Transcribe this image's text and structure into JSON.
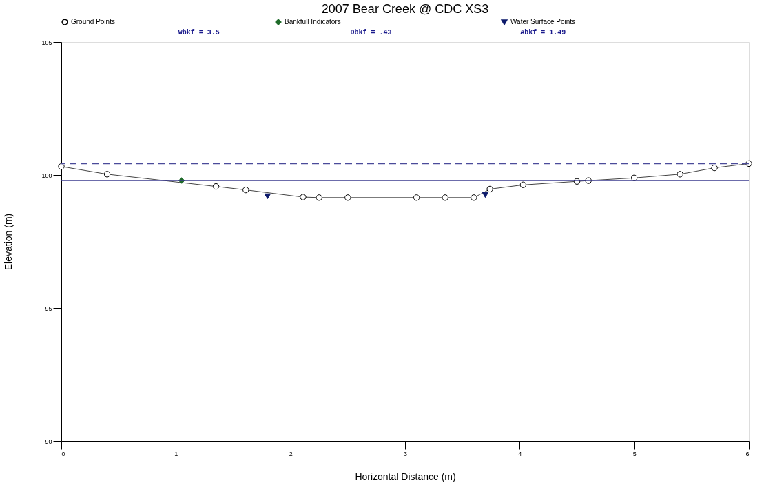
{
  "chart_data": {
    "type": "line",
    "title": "2007 Bear Creek @ CDC XS3",
    "xlabel": "Horizontal Distance (m)",
    "ylabel": "Elevation (m)",
    "xlim": [
      0,
      6
    ],
    "xticks": [
      0,
      1,
      2,
      3,
      4,
      5,
      6
    ],
    "ylim": [
      90,
      105
    ],
    "yticks": [
      90,
      95,
      100,
      105
    ],
    "grid": false,
    "legend": "top",
    "series": [
      {
        "name": "Ground Points",
        "marker": "circle",
        "color": "#000000",
        "x": [
          0,
          0.4,
          1.35,
          1.61,
          2.11,
          2.25,
          2.5,
          3.1,
          3.35,
          3.6,
          3.74,
          4.03,
          4.5,
          4.6,
          5.0,
          5.4,
          5.7,
          6.0
        ],
        "values": [
          100.32,
          100.03,
          99.57,
          99.44,
          99.17,
          99.15,
          99.15,
          99.15,
          99.15,
          99.15,
          99.47,
          99.63,
          99.76,
          99.79,
          99.89,
          100.03,
          100.27,
          100.43
        ]
      },
      {
        "name": "Bankfull Indicators",
        "type": "scatter",
        "marker": "diamond",
        "color": "#1f6b2a",
        "x": [
          1.05
        ],
        "values": [
          99.79
        ]
      },
      {
        "name": "Water Surface Points",
        "type": "scatter",
        "marker": "triangle",
        "color": "#0d1a6b",
        "x": [
          1.8,
          3.7
        ],
        "values": [
          99.2,
          99.25
        ]
      }
    ],
    "ref_lines": [
      {
        "axis": "y",
        "value": 100.43,
        "line_style": "dashed",
        "color": "#4b4b9a"
      },
      {
        "axis": "y",
        "value": 99.79,
        "line_style": "solid",
        "color": "#3b3b8f"
      }
    ],
    "annotations": [
      "Wbkf = 3.5",
      "Dbkf = .43",
      "Abkf = 1.49"
    ]
  }
}
